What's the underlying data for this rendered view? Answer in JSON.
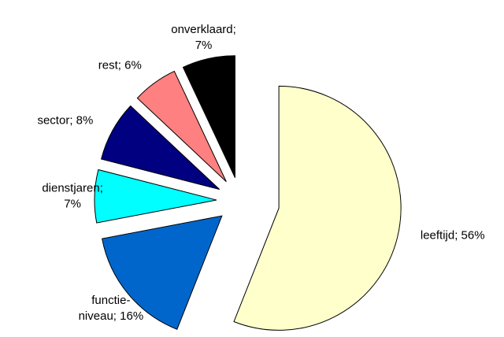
{
  "chart_data": {
    "type": "pie",
    "labels": [
      [
        "leeftijd; 56%"
      ],
      [
        "functie-",
        "niveau; 16%"
      ],
      [
        "dienstjaren;",
        "7%"
      ],
      [
        "sector; 8%"
      ],
      [
        "rest; 6%"
      ],
      [
        "onverklaard;",
        "7%"
      ]
    ],
    "values": [
      56,
      16,
      7,
      8,
      6,
      7
    ],
    "colors": [
      "#ffffcc",
      "#0066cc",
      "#00ffff",
      "#000080",
      "#ff8080",
      "#000000"
    ]
  }
}
